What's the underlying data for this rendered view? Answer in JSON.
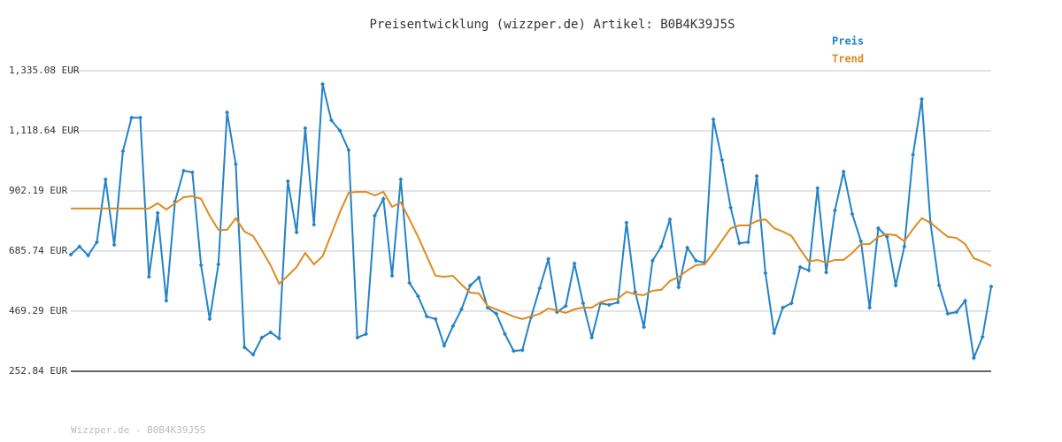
{
  "chart_data": {
    "type": "line",
    "title": "Preisentwicklung (wizzper.de) Artikel: B0B4K39J5S",
    "footer": "Wizzper.de - B0B4K39J5S",
    "ylim": [
      252.84,
      1335.08
    ],
    "yticks": [
      {
        "value": 252.84,
        "label": "252.84 EUR"
      },
      {
        "value": 469.29,
        "label": "469.29 EUR"
      },
      {
        "value": 685.74,
        "label": "685.74 EUR"
      },
      {
        "value": 902.19,
        "label": "902.19 EUR"
      },
      {
        "value": 1118.64,
        "label": "1,118.64 EUR"
      },
      {
        "value": 1335.08,
        "label": "1,335.08 EUR"
      }
    ],
    "grid": true,
    "series": [
      {
        "name": "Preis",
        "color": "#2383c7",
        "markers": true,
        "values": [
          673,
          702,
          670,
          718,
          944,
          708,
          1045,
          1166,
          1166,
          593,
          823,
          507,
          864,
          975,
          969,
          635,
          441,
          638,
          1185,
          998,
          339,
          313,
          374,
          393,
          371,
          937,
          753,
          1128,
          781,
          1287,
          1157,
          1119,
          1049,
          374,
          387,
          813,
          874,
          597,
          944,
          571,
          523,
          450,
          441,
          345,
          415,
          476,
          562,
          590,
          482,
          460,
          387,
          326,
          329,
          447,
          552,
          657,
          466,
          488,
          641,
          498,
          374,
          498,
          492,
          501,
          788,
          539,
          412,
          651,
          702,
          800,
          555,
          698,
          651,
          644,
          1160,
          1014,
          842,
          714,
          718,
          956,
          606,
          390,
          482,
          498,
          628,
          616,
          912,
          609,
          832,
          972,
          819,
          721,
          482,
          768,
          737,
          562,
          702,
          1033,
          1233,
          788,
          562,
          460,
          466,
          507,
          301,
          377,
          558
        ]
      },
      {
        "name": "Trend",
        "color": "#e08a1e",
        "markers": false,
        "values": [
          839,
          839,
          839,
          839,
          839,
          839,
          839,
          839,
          839,
          839,
          858,
          835,
          858,
          880,
          883,
          874,
          813,
          762,
          762,
          804,
          756,
          740,
          689,
          635,
          568,
          597,
          628,
          679,
          638,
          667,
          746,
          826,
          896,
          899,
          899,
          886,
          899,
          845,
          861,
          800,
          737,
          667,
          597,
          593,
          597,
          565,
          536,
          533,
          488,
          476,
          463,
          450,
          441,
          450,
          460,
          479,
          472,
          463,
          476,
          482,
          482,
          501,
          511,
          514,
          539,
          530,
          527,
          543,
          546,
          578,
          593,
          616,
          635,
          638,
          679,
          724,
          768,
          778,
          778,
          794,
          800,
          768,
          756,
          740,
          692,
          648,
          654,
          644,
          654,
          654,
          679,
          711,
          711,
          737,
          746,
          743,
          721,
          765,
          804,
          788,
          762,
          737,
          733,
          711,
          660,
          648,
          632
        ]
      }
    ]
  }
}
